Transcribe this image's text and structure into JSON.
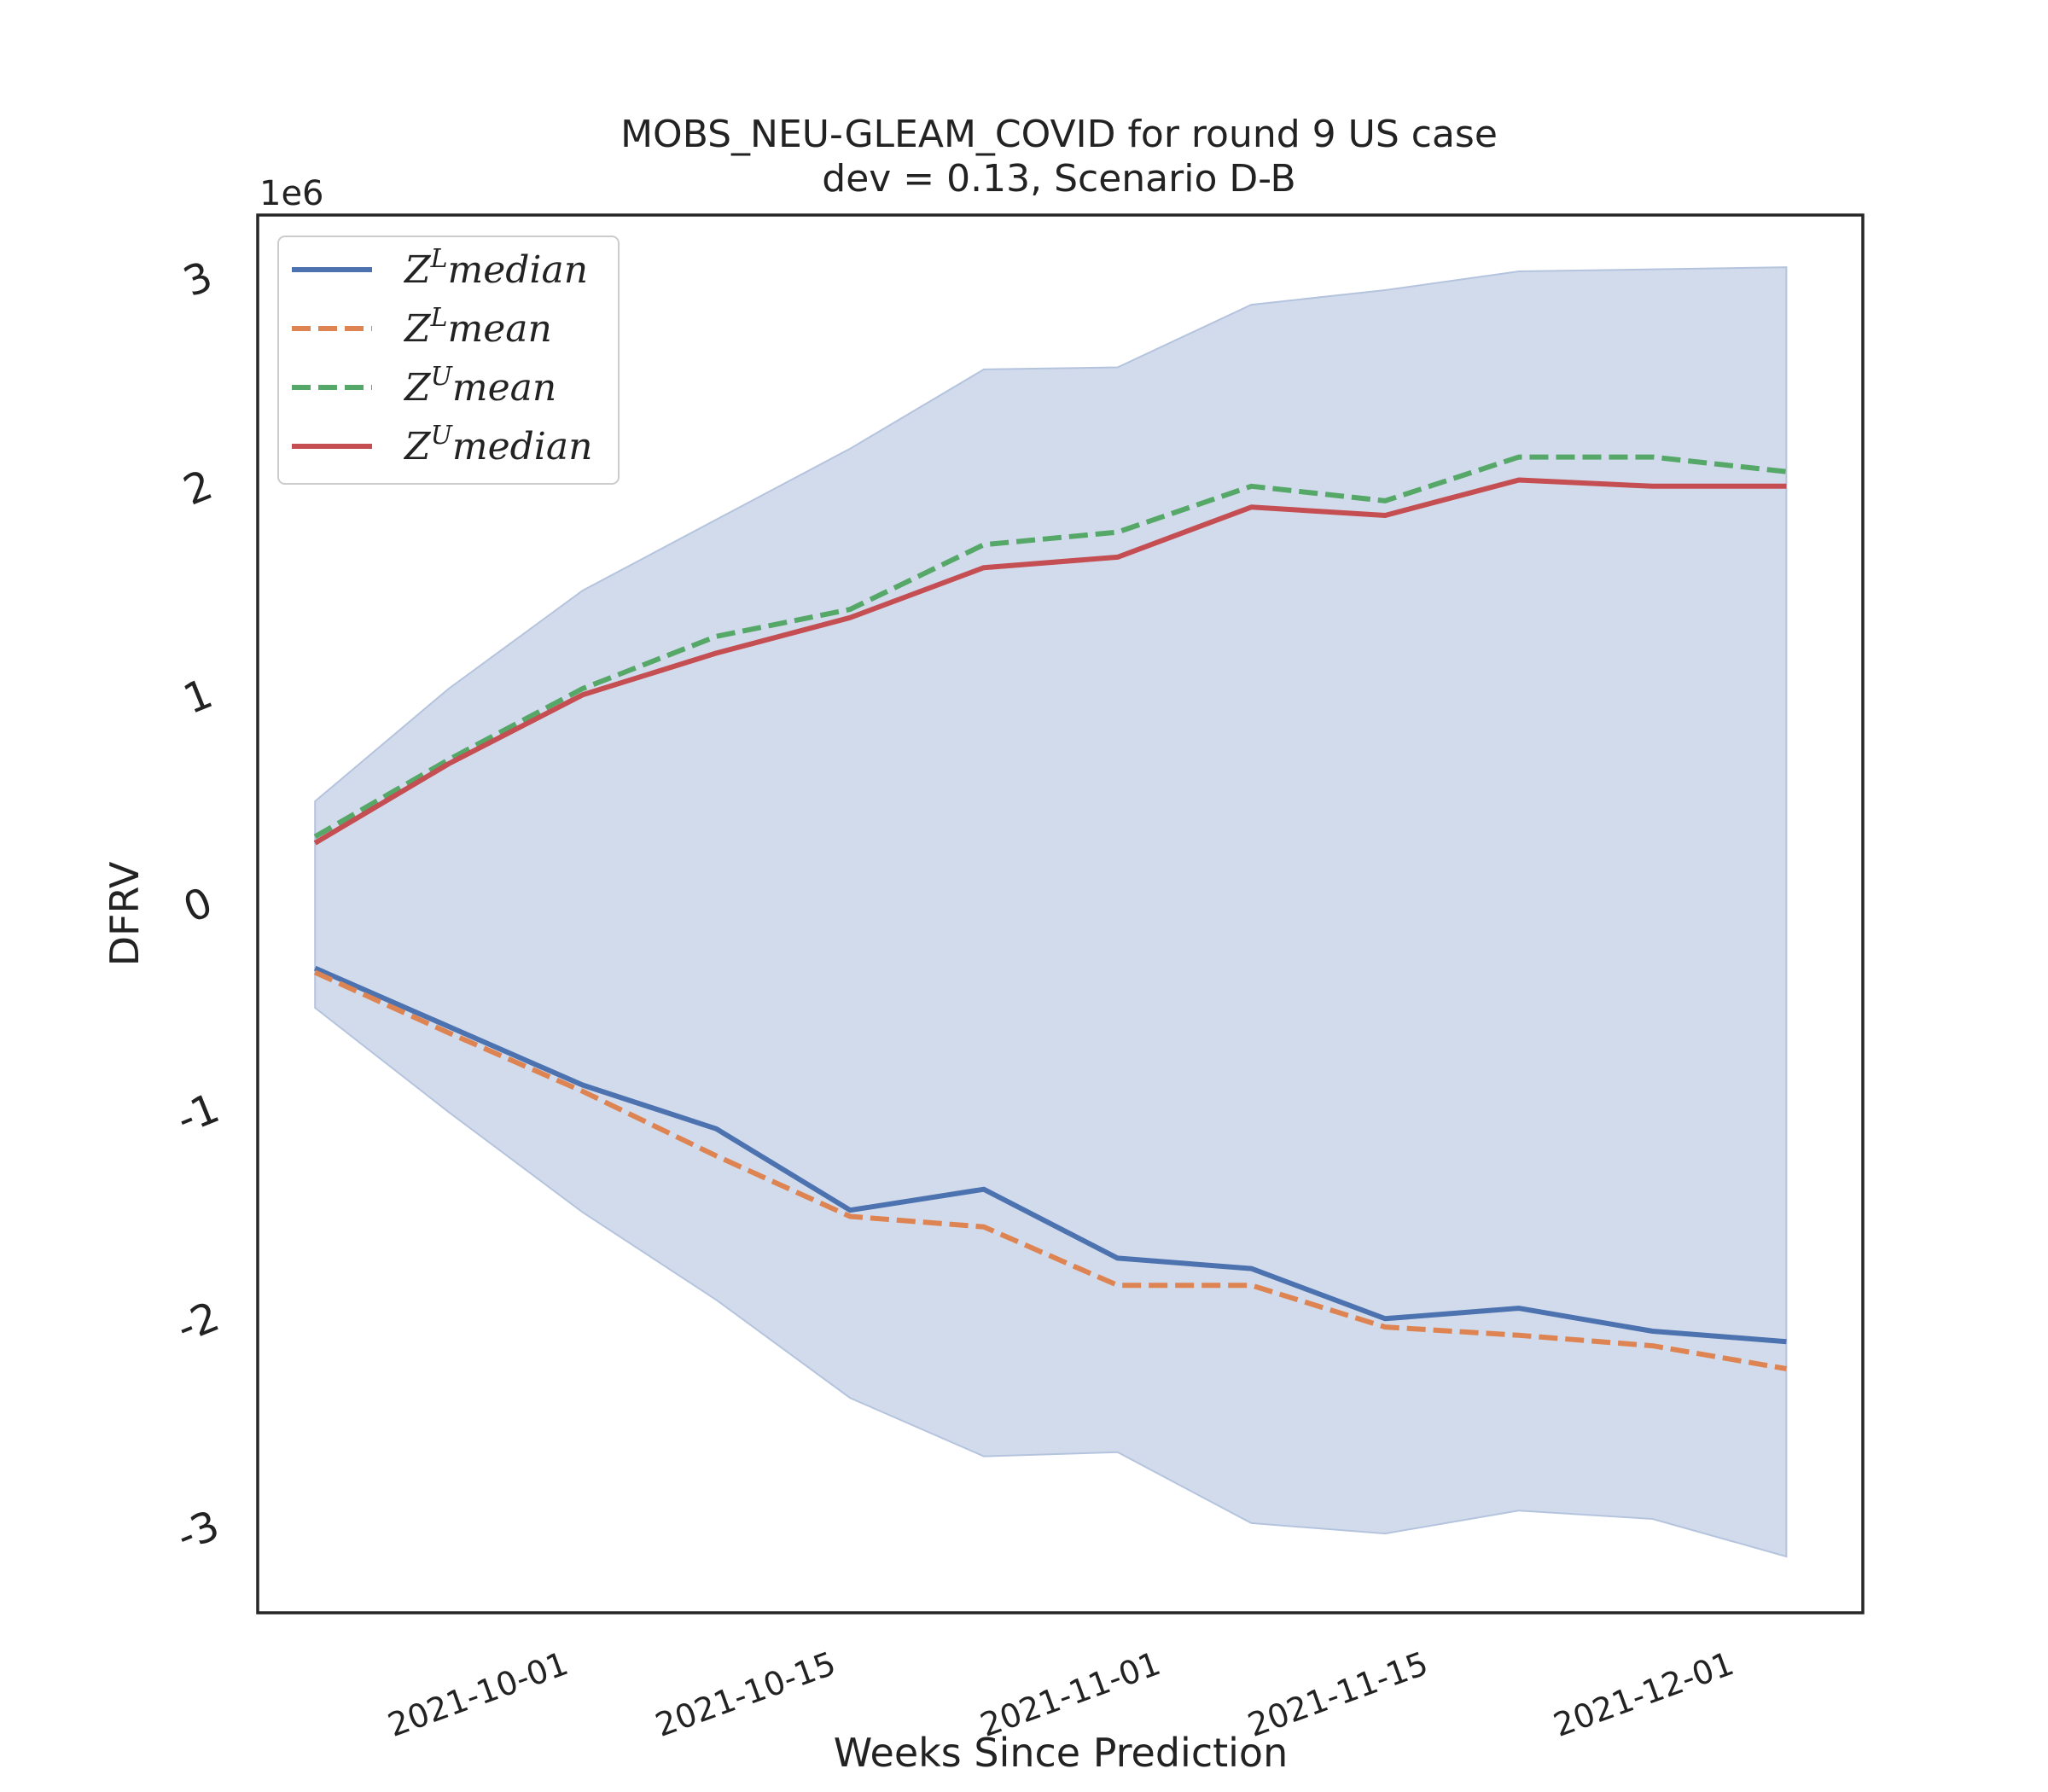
{
  "chart_data": {
    "type": "line",
    "title": "MOBS_NEU-GLEAM_COVID for round 9 US case",
    "subtitle": "dev = 0.13, Scenario D-B",
    "xlabel": "Weeks Since Prediction",
    "ylabel": "DFRV",
    "y_offset_label": "1e6",
    "y_scale_factor": 1000000,
    "ylim": [
      -3.4,
      3.3
    ],
    "yticks": [
      3,
      2,
      1,
      0,
      -1,
      -2,
      -3
    ],
    "ytick_labels": [
      "3",
      "2",
      "1",
      "0",
      "-1",
      "-2",
      "-3"
    ],
    "xlim": [
      "2021-09-15",
      "2021-12-08"
    ],
    "xticks": [
      "2021-10-01",
      "2021-10-15",
      "2021-11-01",
      "2021-11-15",
      "2021-12-01"
    ],
    "x": [
      "2021-09-18",
      "2021-09-25",
      "2021-10-02",
      "2021-10-09",
      "2021-10-16",
      "2021-10-23",
      "2021-10-30",
      "2021-11-06",
      "2021-11-13",
      "2021-11-20",
      "2021-11-27",
      "2021-12-04"
    ],
    "band": {
      "upper": [
        0.49,
        1.03,
        1.5,
        1.84,
        2.18,
        2.56,
        2.57,
        2.87,
        2.94,
        3.03,
        3.04,
        3.05
      ],
      "lower": [
        -0.5,
        -1.0,
        -1.48,
        -1.9,
        -2.37,
        -2.65,
        -2.63,
        -2.97,
        -3.02,
        -2.91,
        -2.95,
        -3.13
      ],
      "color": "#d2dbeb",
      "edge_color": "#b5c4de"
    },
    "series": [
      {
        "name": "Z^L median",
        "color": "#4c72b0",
        "style": "solid",
        "values": [
          -0.31,
          -0.59,
          -0.87,
          -1.08,
          -1.47,
          -1.37,
          -1.7,
          -1.75,
          -1.99,
          -1.94,
          -2.05,
          -2.1
        ]
      },
      {
        "name": "Z^L mean",
        "color": "#dd8452",
        "style": "dashed",
        "values": [
          -0.33,
          -0.62,
          -0.9,
          -1.21,
          -1.5,
          -1.55,
          -1.83,
          -1.83,
          -2.03,
          -2.07,
          -2.12,
          -2.23
        ]
      },
      {
        "name": "Z^U mean",
        "color": "#55a868",
        "style": "dashed",
        "values": [
          0.32,
          0.69,
          1.03,
          1.28,
          1.41,
          1.72,
          1.78,
          2.0,
          1.93,
          2.14,
          2.14,
          2.07
        ]
      },
      {
        "name": "Z^U median",
        "color": "#c44e52",
        "style": "solid",
        "values": [
          0.29,
          0.67,
          1.0,
          1.2,
          1.37,
          1.61,
          1.66,
          1.9,
          1.86,
          2.03,
          2.0,
          2.0
        ]
      }
    ],
    "legend": {
      "position": "top-left",
      "entries": [
        {
          "sup": "L",
          "rest": "median"
        },
        {
          "sup": "L",
          "rest": "mean"
        },
        {
          "sup": "U",
          "rest": "mean"
        },
        {
          "sup": "U",
          "rest": "median"
        }
      ],
      "letter": "Z"
    },
    "grid": false
  }
}
